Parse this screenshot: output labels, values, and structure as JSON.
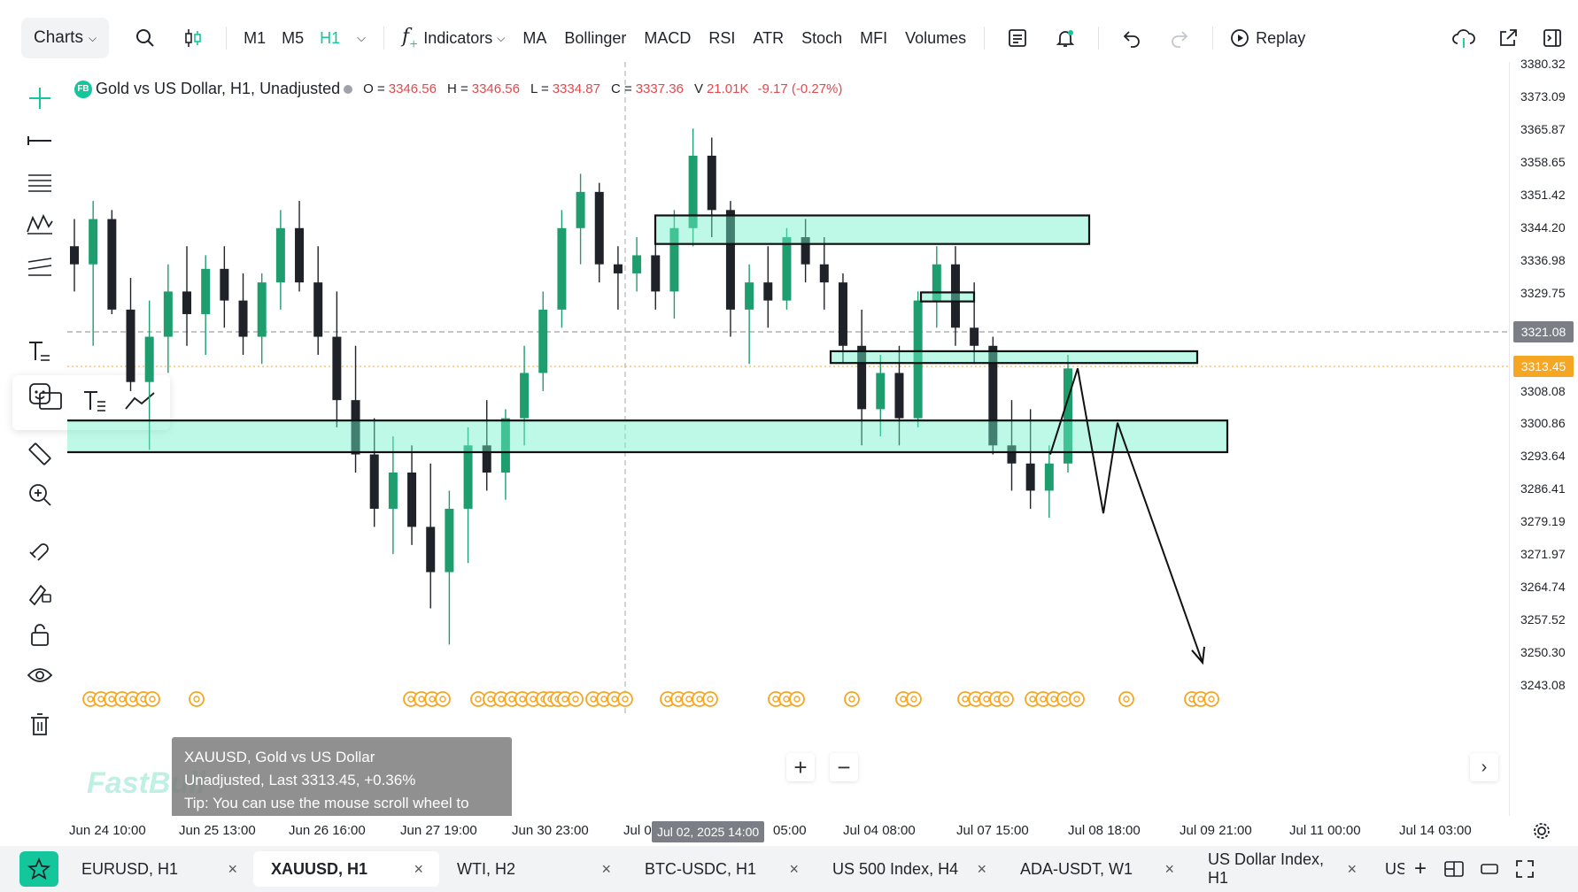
{
  "toolbar": {
    "charts_label": "Charts",
    "timeframes": [
      "M1",
      "M5",
      "H1"
    ],
    "active_timeframe": "H1",
    "indicators_label": "Indicators",
    "indicator_shortcuts": [
      "MA",
      "Bollinger",
      "MACD",
      "RSI",
      "ATR",
      "Stoch",
      "MFI",
      "Volumes"
    ],
    "replay_label": "Replay",
    "accent_color": "#14c69b"
  },
  "legend": {
    "badge": "FB",
    "title": "Gold vs US Dollar, H1, Unadjusted",
    "o_label": "O =",
    "o_value": "3346.56",
    "h_label": "H =",
    "h_value": "3346.56",
    "l_label": "L =",
    "l_value": "3334.87",
    "c_label": "C =",
    "c_value": "3337.36",
    "v_label": "V",
    "v_value": "21.01K",
    "change": "-9.17 (-0.27%)",
    "down_color": "#e5484d"
  },
  "price_axis": {
    "ticks": [
      "3380.32",
      "3373.09",
      "3365.87",
      "3358.65",
      "3351.42",
      "3344.20",
      "3336.98",
      "3329.75",
      "3308.08",
      "3300.86",
      "3293.64",
      "3286.41",
      "3279.19",
      "3271.97",
      "3264.74",
      "3257.52",
      "3250.30",
      "3243.08"
    ],
    "crosshair_price": "3321.08",
    "last_price": "3313.45",
    "last_price_color": "#f5a623"
  },
  "time_axis": {
    "ticks": [
      "Jun 24 10:00",
      "Jun 25 13:00",
      "Jun 26 16:00",
      "Jun 27 19:00",
      "Jun 30 23:00",
      "Jul 0",
      "05:00",
      "Jul 04 08:00",
      "Jul 07 15:00",
      "Jul 08 18:00",
      "Jul 09 21:00",
      "Jul 11 00:00",
      "Jul 14 03:00"
    ],
    "crosshair_time": "Jul 02, 2025 14:00"
  },
  "tooltip": {
    "line1": "XAUUSD, Gold vs US Dollar",
    "line2": "Unadjusted, Last 3313.45, +0.36%",
    "line3": "Tip: You can use the mouse scroll wheel to switch opened charts."
  },
  "watermark": "FastBull",
  "tabs": [
    {
      "label": "EURUSD, H1",
      "active": false
    },
    {
      "label": "XAUUSD, H1",
      "active": true
    },
    {
      "label": "WTI, H2",
      "active": false
    },
    {
      "label": "BTC-USDC, H1",
      "active": false
    },
    {
      "label": "US 500 Index, H4",
      "active": false
    },
    {
      "label": "ADA-USDT, W1",
      "active": false
    },
    {
      "label": "US Dollar Index, H1",
      "active": false
    },
    {
      "label": "US",
      "active": false
    }
  ],
  "chart_data": {
    "type": "candlestick",
    "symbol": "XAUUSD",
    "timeframe": "H1",
    "ylim": [
      3240,
      3383
    ],
    "zones": [
      {
        "from": 3340.5,
        "to": 3346.8
      },
      {
        "from": 3327.8,
        "to": 3329.8
      },
      {
        "from": 3314.2,
        "to": 3316.8
      },
      {
        "from": 3294.5,
        "to": 3301.5
      }
    ],
    "projection_path": [
      3294,
      3313,
      3281,
      3301,
      3248
    ],
    "candles": [
      [
        3340,
        3346,
        3330,
        3336
      ],
      [
        3336,
        3350,
        3318,
        3346
      ],
      [
        3346,
        3348,
        3325,
        3326
      ],
      [
        3326,
        3333,
        3308,
        3310
      ],
      [
        3310,
        3328,
        3295,
        3320
      ],
      [
        3320,
        3336,
        3312,
        3330
      ],
      [
        3330,
        3340,
        3318,
        3325
      ],
      [
        3325,
        3338,
        3316,
        3335
      ],
      [
        3335,
        3340,
        3322,
        3328
      ],
      [
        3328,
        3334,
        3316,
        3320
      ],
      [
        3320,
        3334,
        3314,
        3332
      ],
      [
        3332,
        3348,
        3326,
        3344
      ],
      [
        3344,
        3350,
        3330,
        3332
      ],
      [
        3332,
        3340,
        3316,
        3320
      ],
      [
        3320,
        3330,
        3300,
        3306
      ],
      [
        3306,
        3318,
        3290,
        3294
      ],
      [
        3294,
        3302,
        3278,
        3282
      ],
      [
        3282,
        3298,
        3272,
        3290
      ],
      [
        3290,
        3296,
        3274,
        3278
      ],
      [
        3278,
        3292,
        3260,
        3268
      ],
      [
        3268,
        3286,
        3252,
        3282
      ],
      [
        3282,
        3300,
        3270,
        3296
      ],
      [
        3296,
        3306,
        3286,
        3290
      ],
      [
        3290,
        3304,
        3284,
        3302
      ],
      [
        3302,
        3318,
        3296,
        3312
      ],
      [
        3312,
        3330,
        3308,
        3326
      ],
      [
        3326,
        3348,
        3322,
        3344
      ],
      [
        3344,
        3356,
        3336,
        3352
      ],
      [
        3352,
        3354,
        3332,
        3336
      ],
      [
        3336,
        3340,
        3326,
        3334
      ],
      [
        3334,
        3342,
        3330,
        3338
      ],
      [
        3338,
        3346,
        3326,
        3330
      ],
      [
        3330,
        3348,
        3324,
        3344
      ],
      [
        3344,
        3366,
        3340,
        3360
      ],
      [
        3360,
        3364,
        3342,
        3348
      ],
      [
        3348,
        3350,
        3320,
        3326
      ],
      [
        3326,
        3336,
        3314,
        3332
      ],
      [
        3332,
        3340,
        3322,
        3328
      ],
      [
        3328,
        3344,
        3326,
        3342
      ],
      [
        3342,
        3346,
        3332,
        3336
      ],
      [
        3336,
        3342,
        3326,
        3332
      ],
      [
        3332,
        3334,
        3314,
        3318
      ],
      [
        3318,
        3326,
        3296,
        3304
      ],
      [
        3304,
        3316,
        3298,
        3312
      ],
      [
        3312,
        3318,
        3296,
        3302
      ],
      [
        3302,
        3330,
        3300,
        3328
      ],
      [
        3328,
        3340,
        3322,
        3336
      ],
      [
        3336,
        3340,
        3318,
        3322
      ],
      [
        3322,
        3332,
        3314,
        3318
      ],
      [
        3318,
        3320,
        3294,
        3296
      ],
      [
        3296,
        3306,
        3286,
        3292
      ],
      [
        3292,
        3304,
        3282,
        3286
      ],
      [
        3286,
        3296,
        3280,
        3292
      ],
      [
        3292,
        3316,
        3290,
        3313
      ]
    ]
  }
}
